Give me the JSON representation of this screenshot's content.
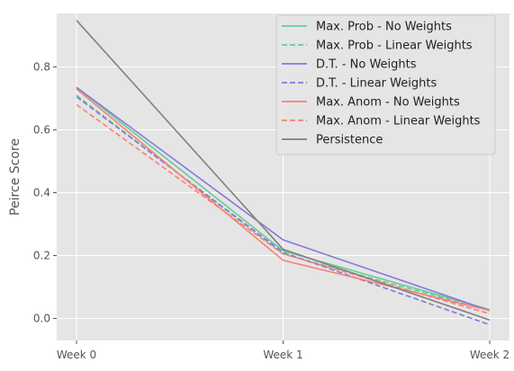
{
  "chart_data": {
    "type": "line",
    "categories": [
      "Week 0",
      "Week 1",
      "Week 2"
    ],
    "ylabel": "Peirce Score",
    "ylim": [
      -0.07,
      0.97
    ],
    "yticks": [
      0.0,
      0.2,
      0.4,
      0.6,
      0.8
    ],
    "grid": true,
    "legend_position": "top-right",
    "series": [
      {
        "name": "Max. Prob - No Weights",
        "values": [
          0.735,
          0.215,
          0.028
        ],
        "color": "#66cc99",
        "dash": "solid"
      },
      {
        "name": "Max. Prob - Linear Weights",
        "values": [
          0.71,
          0.205,
          0.025
        ],
        "color": "#66cc99",
        "dash": "dashed"
      },
      {
        "name": "D.T. - No Weights",
        "values": [
          0.735,
          0.25,
          0.025
        ],
        "color": "#8877dd",
        "dash": "solid"
      },
      {
        "name": "D.T. - Linear Weights",
        "values": [
          0.705,
          0.21,
          -0.02
        ],
        "color": "#8877dd",
        "dash": "dashed"
      },
      {
        "name": "Max. Anom - No Weights",
        "values": [
          0.73,
          0.185,
          0.025
        ],
        "color": "#fa8072",
        "dash": "solid"
      },
      {
        "name": "Max. Anom - Linear Weights",
        "values": [
          0.68,
          0.205,
          0.015
        ],
        "color": "#fa8072",
        "dash": "dashed"
      },
      {
        "name": "Persistence",
        "values": [
          0.948,
          0.22,
          -0.005
        ],
        "color": "#808080",
        "dash": "solid"
      }
    ]
  }
}
